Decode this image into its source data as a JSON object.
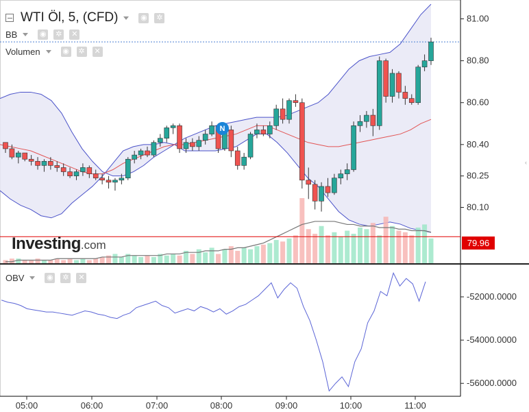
{
  "header": {
    "instrument_title": "WTI Öl, 5, (CFD)",
    "indicator_bb": "BB",
    "indicator_volume": "Volumen",
    "indicator_obv": "OBV"
  },
  "logo": {
    "brand": "Investing",
    "suffix": ".com"
  },
  "news_badge": "N",
  "current_price_label": "79.96",
  "colors": {
    "up": "#26a69a",
    "down": "#ef5350",
    "bb_band": "#4a52c9",
    "bb_mid": "#e25454",
    "bb_fill": "#e8e8f6",
    "obv_line": "#5a64d6",
    "price_line": "#e00000",
    "last_price_dotted": "#4a7fd4"
  },
  "chart_data": [
    {
      "type": "candlestick",
      "title": "WTI Öl, 5, (CFD)",
      "x_ticks": [
        "05:00",
        "06:00",
        "07:00",
        "08:00",
        "09:00",
        "10:00",
        "11:00"
      ],
      "y_ticks": [
        "81.00",
        "80.80",
        "80.60",
        "80.40",
        "80.25",
        "80.10"
      ],
      "ylim": [
        79.83,
        81.09
      ],
      "candles_ohlc": [
        [
          80.41,
          80.41,
          80.36,
          80.38
        ],
        [
          80.38,
          80.4,
          80.33,
          80.34
        ],
        [
          80.34,
          80.37,
          80.31,
          80.36
        ],
        [
          80.36,
          80.36,
          80.32,
          80.33
        ],
        [
          80.33,
          80.35,
          80.3,
          80.32
        ],
        [
          80.32,
          80.34,
          80.28,
          80.3
        ],
        [
          80.3,
          80.33,
          80.27,
          80.32
        ],
        [
          80.32,
          80.34,
          80.28,
          80.3
        ],
        [
          80.3,
          80.32,
          80.27,
          80.29
        ],
        [
          80.29,
          80.31,
          80.25,
          80.27
        ],
        [
          80.27,
          80.29,
          80.24,
          80.25
        ],
        [
          80.25,
          80.28,
          80.23,
          80.27
        ],
        [
          80.27,
          80.31,
          80.25,
          80.29
        ],
        [
          80.29,
          80.3,
          80.24,
          80.26
        ],
        [
          80.26,
          80.28,
          80.23,
          80.24
        ],
        [
          80.24,
          80.26,
          80.21,
          80.23
        ],
        [
          80.23,
          80.25,
          80.19,
          80.22
        ],
        [
          80.22,
          80.24,
          80.18,
          80.23
        ],
        [
          80.23,
          80.26,
          80.21,
          80.24
        ],
        [
          80.24,
          80.34,
          80.23,
          80.33
        ],
        [
          80.33,
          80.37,
          80.31,
          80.35
        ],
        [
          80.35,
          80.38,
          80.33,
          80.37
        ],
        [
          80.37,
          80.39,
          80.34,
          80.35
        ],
        [
          80.35,
          80.42,
          80.34,
          80.41
        ],
        [
          80.41,
          80.45,
          80.39,
          80.43
        ],
        [
          80.43,
          80.49,
          80.41,
          80.48
        ],
        [
          80.48,
          80.5,
          80.45,
          80.49
        ],
        [
          80.49,
          80.5,
          80.36,
          80.38
        ],
        [
          80.38,
          80.43,
          80.36,
          80.41
        ],
        [
          80.41,
          80.43,
          80.37,
          80.39
        ],
        [
          80.39,
          80.44,
          80.37,
          80.42
        ],
        [
          80.42,
          80.47,
          80.4,
          80.45
        ],
        [
          80.45,
          80.51,
          80.44,
          80.49
        ],
        [
          80.49,
          80.5,
          80.36,
          80.38
        ],
        [
          80.38,
          80.48,
          80.37,
          80.47
        ],
        [
          80.47,
          80.49,
          80.34,
          80.37
        ],
        [
          80.37,
          80.39,
          80.28,
          80.3
        ],
        [
          80.3,
          80.36,
          80.28,
          80.34
        ],
        [
          80.34,
          80.46,
          80.33,
          80.45
        ],
        [
          80.45,
          80.5,
          80.43,
          80.47
        ],
        [
          80.47,
          80.49,
          80.44,
          80.45
        ],
        [
          80.45,
          80.51,
          80.43,
          80.49
        ],
        [
          80.49,
          80.59,
          80.47,
          80.57
        ],
        [
          80.57,
          80.62,
          80.5,
          80.52
        ],
        [
          80.52,
          80.62,
          80.5,
          80.61
        ],
        [
          80.61,
          80.64,
          80.58,
          80.6
        ],
        [
          80.6,
          80.62,
          80.19,
          80.23
        ],
        [
          80.23,
          80.29,
          80.14,
          80.21
        ],
        [
          80.21,
          80.23,
          80.09,
          80.13
        ],
        [
          80.13,
          80.22,
          80.08,
          80.2
        ],
        [
          80.2,
          80.24,
          80.15,
          80.17
        ],
        [
          80.17,
          80.26,
          80.16,
          80.24
        ],
        [
          80.24,
          80.28,
          80.21,
          80.26
        ],
        [
          80.26,
          80.31,
          80.23,
          80.28
        ],
        [
          80.28,
          80.51,
          80.27,
          80.49
        ],
        [
          80.49,
          80.54,
          80.46,
          80.51
        ],
        [
          80.51,
          80.56,
          80.48,
          80.54
        ],
        [
          80.54,
          80.57,
          80.44,
          80.49
        ],
        [
          80.49,
          80.82,
          80.47,
          80.8
        ],
        [
          80.8,
          80.81,
          80.6,
          80.63
        ],
        [
          80.63,
          80.76,
          80.6,
          80.74
        ],
        [
          80.74,
          80.75,
          80.62,
          80.65
        ],
        [
          80.65,
          80.68,
          80.59,
          80.62
        ],
        [
          80.62,
          80.64,
          80.59,
          80.6
        ],
        [
          80.6,
          80.78,
          80.59,
          80.77
        ],
        [
          80.77,
          80.83,
          80.75,
          80.8
        ],
        [
          80.8,
          80.91,
          80.78,
          80.89
        ]
      ],
      "bb_upper": [
        80.62,
        80.64,
        80.65,
        80.65,
        80.64,
        80.61,
        80.55,
        80.46,
        80.38,
        80.32,
        80.27,
        80.25,
        80.25,
        80.27,
        80.3,
        80.34,
        80.37,
        80.4,
        80.43,
        80.45,
        80.47,
        80.49,
        80.5,
        80.51,
        80.52,
        80.53,
        80.53,
        80.53,
        80.54,
        80.56,
        80.58,
        80.6,
        80.64,
        80.7,
        80.76,
        80.8,
        80.82,
        80.83,
        80.84,
        80.88,
        80.95,
        81.02,
        81.07
      ],
      "bb_middle": [
        80.4,
        80.39,
        80.38,
        80.37,
        80.35,
        80.33,
        80.31,
        80.29,
        80.27,
        80.26,
        80.26,
        80.28,
        80.31,
        80.33,
        80.35,
        80.37,
        80.39,
        80.4,
        80.4,
        80.41,
        80.42,
        80.43,
        80.44,
        80.45,
        80.47,
        80.49,
        80.49,
        80.47,
        80.45,
        80.43,
        80.41,
        80.4,
        80.39,
        80.39,
        80.4,
        80.41,
        80.42,
        80.43,
        80.44,
        80.45,
        80.47,
        80.5,
        80.52
      ],
      "bb_lower": [
        80.18,
        80.14,
        80.11,
        80.09,
        80.06,
        80.05,
        80.07,
        80.12,
        80.16,
        80.2,
        80.25,
        80.31,
        80.37,
        80.39,
        80.4,
        80.4,
        80.41,
        80.4,
        80.37,
        80.37,
        80.37,
        80.37,
        80.38,
        80.39,
        80.42,
        80.45,
        80.45,
        80.41,
        80.36,
        80.3,
        80.24,
        80.2,
        80.14,
        80.08,
        80.04,
        80.02,
        80.01,
        80.02,
        80.03,
        80.02,
        80.0,
        79.99,
        79.98
      ],
      "current_price": 79.96
    },
    {
      "type": "bar",
      "title": "Volumen",
      "values": [
        2,
        3,
        3,
        2,
        2,
        3,
        2,
        2,
        3,
        2,
        3,
        2,
        3,
        2,
        3,
        4,
        5,
        6,
        4,
        6,
        5,
        4,
        5,
        4,
        6,
        5,
        6,
        5,
        8,
        6,
        9,
        7,
        10,
        6,
        9,
        11,
        8,
        10,
        9,
        11,
        12,
        13,
        15,
        14,
        16,
        18,
        42,
        22,
        19,
        24,
        18,
        20,
        17,
        21,
        19,
        23,
        22,
        26,
        18,
        30,
        24,
        21,
        20,
        18,
        23,
        25,
        16
      ],
      "moving_average": [
        1,
        1,
        2,
        2,
        2,
        2,
        2,
        2,
        3,
        3,
        3,
        3,
        3,
        3,
        3,
        4,
        4,
        4,
        4,
        5,
        5,
        5,
        5,
        5,
        5,
        6,
        6,
        6,
        7,
        7,
        7,
        8,
        8,
        8,
        9,
        9,
        10,
        10,
        11,
        12,
        13,
        15,
        17,
        19,
        21,
        23,
        25,
        26,
        27,
        27,
        27,
        27,
        26,
        25,
        25,
        24,
        24,
        24,
        23,
        23,
        23,
        22,
        22,
        21,
        21,
        21,
        20
      ]
    },
    {
      "type": "line",
      "title": "OBV",
      "y_ticks": [
        "-52000.0000",
        "-54000.0000",
        "-56000.0000"
      ],
      "ylim": [
        -56500,
        -50700
      ],
      "values": [
        -52150,
        -52250,
        -52300,
        -52400,
        -52550,
        -52600,
        -52650,
        -52700,
        -52700,
        -52750,
        -52800,
        -52850,
        -52750,
        -52650,
        -52700,
        -52800,
        -52850,
        -52950,
        -53000,
        -52850,
        -52750,
        -52500,
        -52400,
        -52300,
        -52200,
        -52400,
        -52500,
        -52750,
        -52650,
        -52550,
        -52650,
        -52450,
        -52550,
        -52700,
        -52550,
        -52800,
        -52650,
        -52450,
        -52350,
        -52150,
        -51950,
        -51650,
        -51350,
        -52050,
        -51650,
        -51350,
        -51600,
        -52450,
        -53100,
        -54000,
        -55000,
        -56350,
        -56000,
        -55700,
        -56150,
        -55000,
        -54400,
        -53200,
        -52650,
        -51750,
        -51950,
        -50900,
        -51500,
        -51150,
        -51400,
        -52200,
        -51300
      ]
    }
  ]
}
